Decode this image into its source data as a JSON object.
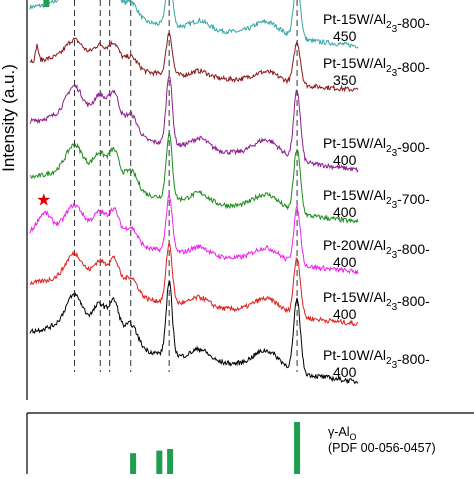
{
  "chart_data": {
    "type": "line",
    "ylabel": "Intensity (a.u.)",
    "xlabel": "",
    "x_range": [
      10,
      80
    ],
    "y_ticks_shown": false,
    "series": [
      {
        "label_lines": [
          "Pt-15W/Al",
          "O",
          "-800-",
          "450"
        ],
        "color": "#3aa5a5",
        "offset": 8.4,
        "scale": 1.0,
        "extra_peaks": []
      },
      {
        "label_lines": [
          "Pt-15W/Al",
          "O",
          "-800-",
          "350"
        ],
        "color": "#8b1a1a",
        "offset": 7.3,
        "scale": 0.75,
        "extra_peaks": [
          {
            "x": 11.5,
            "h": 0.5,
            "w": 0.4
          }
        ]
      },
      {
        "label_lines": [
          "Pt-15W/Al",
          "O",
          "-900-",
          "400"
        ],
        "color": "#8e1f8e",
        "offset": 5.3,
        "scale": 1.25,
        "extra_peaks": []
      },
      {
        "label_lines": [
          "Pt-15W/Al",
          "O",
          "-700-",
          "400"
        ],
        "color": "#1a8c1a",
        "offset": 4.0,
        "scale": 1.15,
        "extra_peaks": []
      },
      {
        "label_lines": [
          "Pt-20W/Al",
          "O",
          "-800-",
          "400"
        ],
        "color": "#ee22ee",
        "offset": 2.75,
        "scale": 1.0,
        "extra_peaks": [
          {
            "x": 13.0,
            "h": 0.45,
            "w": 2.0
          }
        ]
      },
      {
        "label_lines": [
          "Pt-15W/Al",
          "O",
          "-800-",
          "400"
        ],
        "color": "#e02020",
        "offset": 1.45,
        "scale": 1.05,
        "extra_peaks": []
      },
      {
        "label_lines": [
          "Pt-10W/Al",
          "O",
          "-800-",
          "400"
        ],
        "color": "#000000",
        "offset": 0.0,
        "scale": 1.3,
        "extra_peaks": []
      }
    ],
    "peaks": [
      {
        "x": 19.5,
        "h": 0.55,
        "w": 2.5
      },
      {
        "x": 25.0,
        "h": 0.55,
        "w": 2.0
      },
      {
        "x": 28.0,
        "h": 0.7,
        "w": 1.5
      },
      {
        "x": 31.5,
        "h": 0.45,
        "w": 2.0
      },
      {
        "x": 39.7,
        "h": 1.4,
        "w": 0.9
      },
      {
        "x": 46.3,
        "h": 0.2,
        "w": 2.5
      },
      {
        "x": 60.5,
        "h": 0.35,
        "w": 4.0
      },
      {
        "x": 67.0,
        "h": 1.4,
        "w": 1.0
      }
    ],
    "dashed_lines_x": [
      19.5,
      25.0,
      27.0,
      31.5,
      39.7,
      67.0
    ],
    "star_marker": {
      "symbol": "★",
      "color": "#e00000",
      "x": 12.8,
      "series_index": 4
    },
    "green_marker_x": 13.5,
    "reference": {
      "name": [
        "γ-Al",
        "O"
      ],
      "pdf": "(PDF 00-056-0457)",
      "color": "#1e9e4e",
      "bars": [
        {
          "x": 32.0,
          "h": 0.4
        },
        {
          "x": 37.6,
          "h": 0.45
        },
        {
          "x": 39.9,
          "h": 0.48
        },
        {
          "x": 67.0,
          "h": 1.0
        }
      ]
    }
  }
}
